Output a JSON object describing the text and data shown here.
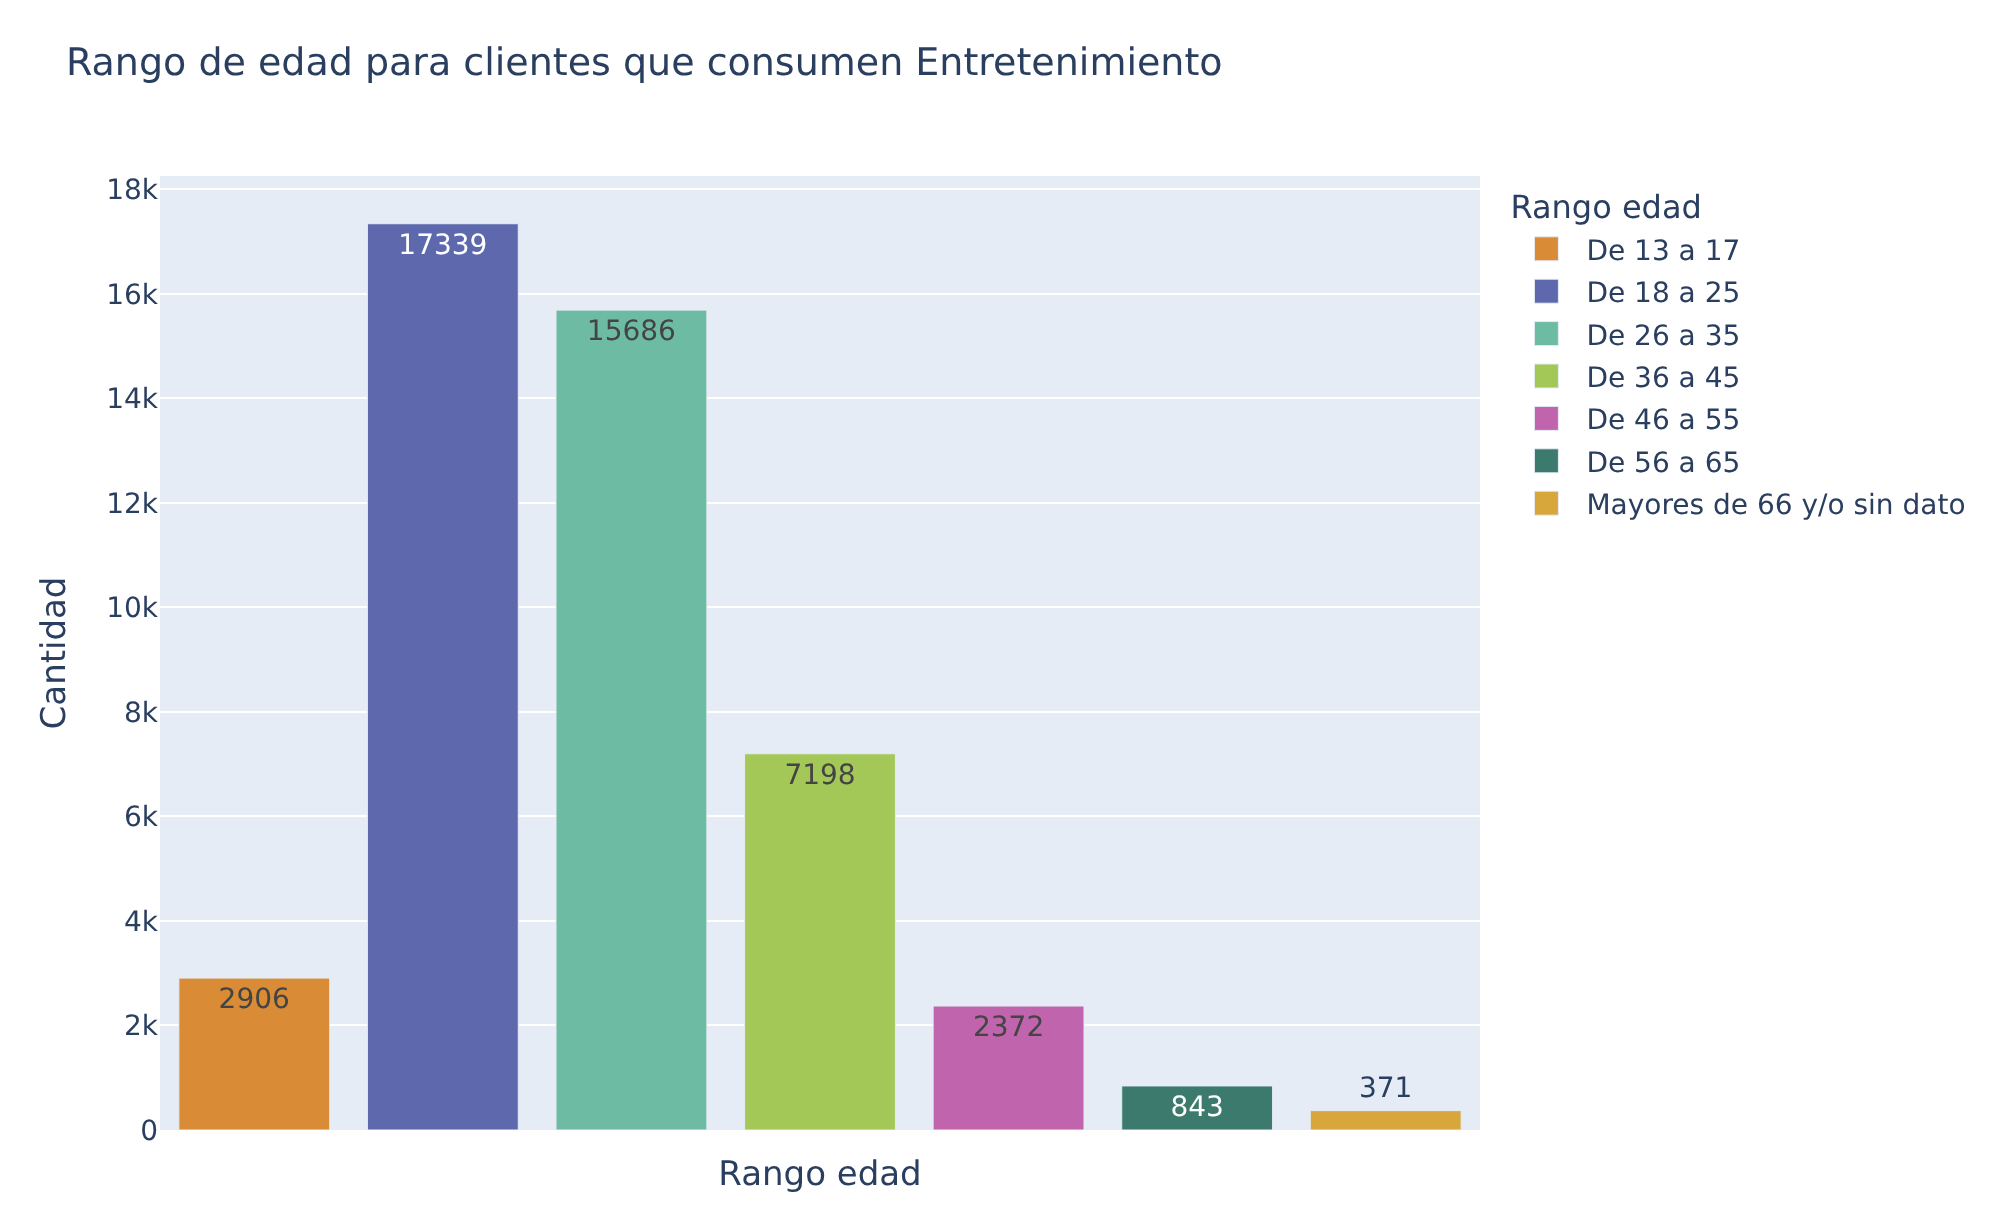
{
  "chart_data": {
    "type": "bar",
    "title": "Rango de edad para clientes que consumen Entretenimiento",
    "xlabel": "Rango edad",
    "ylabel": "Cantidad",
    "legend_title": "Rango edad",
    "categories": [
      null,
      null,
      null,
      null,
      null,
      null,
      null
    ],
    "series": [
      {
        "name": "De 13 a 17",
        "color": "#d98b35",
        "values": [
          2906,
          null,
          null,
          null,
          null,
          null,
          null
        ]
      },
      {
        "name": "De 18 a 25",
        "color": "#5e69ad",
        "values": [
          null,
          17339,
          null,
          null,
          null,
          null,
          null
        ]
      },
      {
        "name": "De 26 a 35",
        "color": "#6dbba3",
        "values": [
          null,
          null,
          15686,
          null,
          null,
          null,
          null
        ]
      },
      {
        "name": "De 36 a 45",
        "color": "#a3c858",
        "values": [
          null,
          null,
          null,
          7198,
          null,
          null,
          null
        ]
      },
      {
        "name": "De 46 a 55",
        "color": "#c065ad",
        "values": [
          null,
          null,
          null,
          null,
          2372,
          null,
          null
        ]
      },
      {
        "name": "De 56 a 65",
        "color": "#3b7a6c",
        "values": [
          null,
          null,
          null,
          null,
          null,
          843,
          null
        ]
      },
      {
        "name": "Mayores de 66 y/o sin dato",
        "color": "#d8a73c",
        "values": [
          null,
          null,
          null,
          null,
          null,
          null,
          371
        ]
      }
    ],
    "ylim": [
      0,
      18252
    ],
    "yticks": [
      0,
      {
        "value": 2000,
        "label": "2k"
      },
      {
        "value": 4000,
        "label": "4k"
      },
      {
        "value": 6000,
        "label": "6k"
      },
      {
        "value": 8000,
        "label": "8k"
      },
      {
        "value": 10000,
        "label": "10k"
      },
      {
        "value": 12000,
        "label": "12k"
      },
      {
        "value": 14000,
        "label": "14k"
      },
      {
        "value": 16000,
        "label": "16k"
      },
      {
        "value": 18000,
        "label": "18k"
      }
    ],
    "grid": "y",
    "legend": "right",
    "data_labels": true,
    "tick_labels": "y"
  }
}
